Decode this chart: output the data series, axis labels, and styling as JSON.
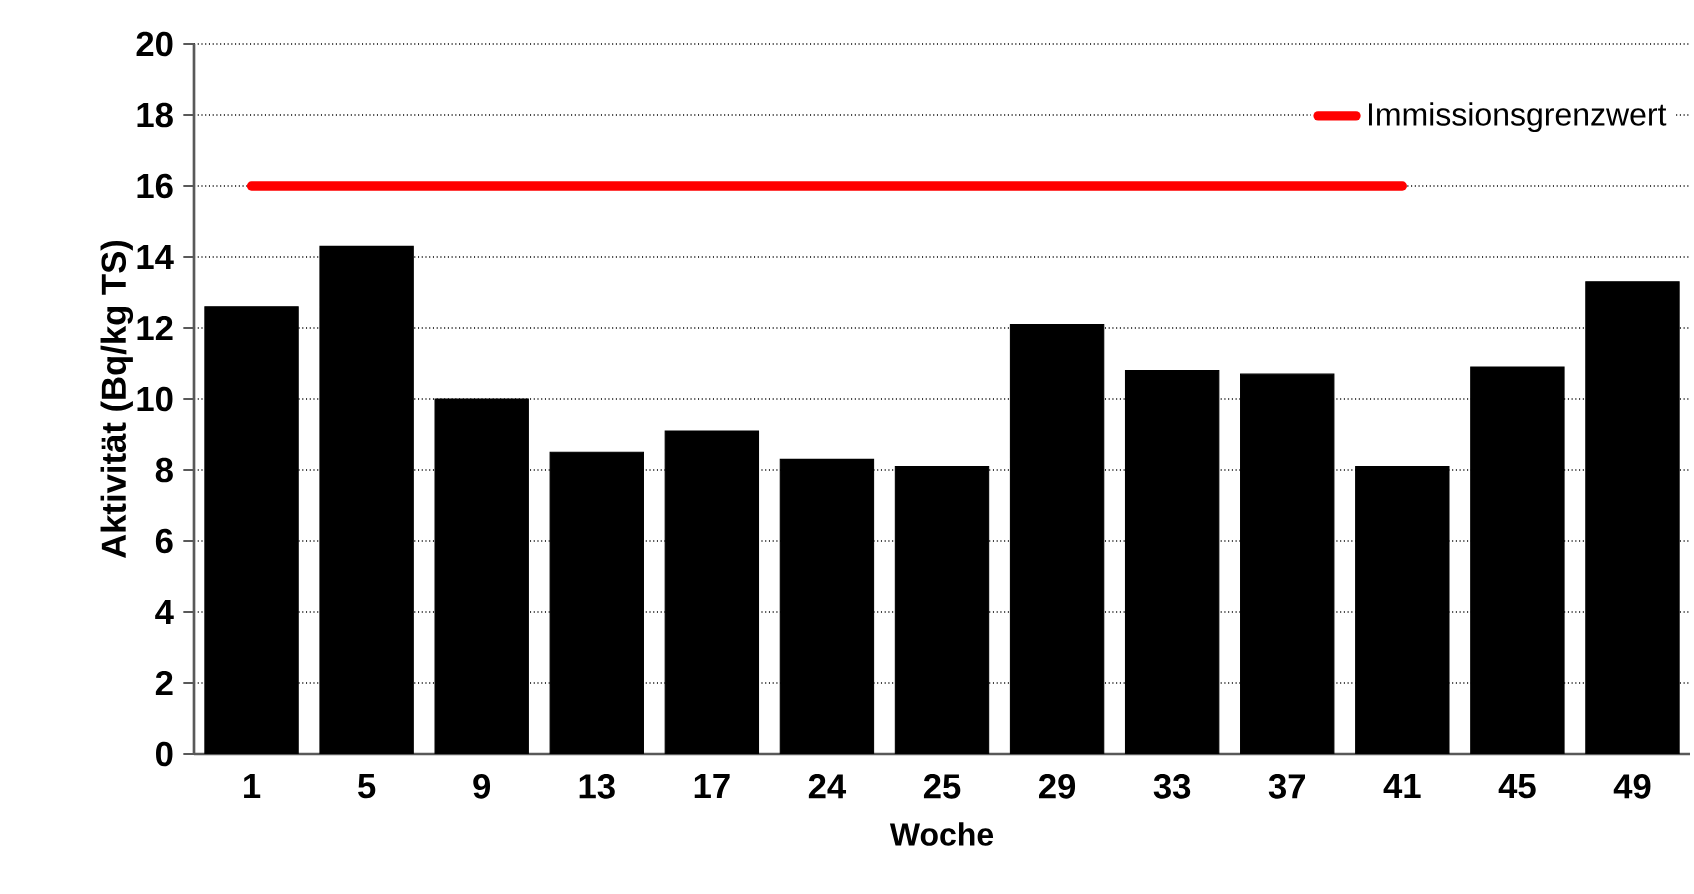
{
  "chart_data": {
    "type": "bar",
    "xlabel": "Woche",
    "ylabel": "Aktivität (Bq/kg TS)",
    "categories": [
      "1",
      "5",
      "9",
      "13",
      "17",
      "24",
      "25",
      "29",
      "33",
      "37",
      "41",
      "45",
      "49"
    ],
    "series": [
      {
        "color": "#000000",
        "values": [
          12.6,
          14.3,
          10.0,
          8.5,
          9.1,
          8.3,
          8.1,
          12.1,
          10.8,
          10.7,
          8.1,
          10.9,
          13.3
        ]
      },
      {
        "type": "line",
        "name": "Immissionsgrenzwert",
        "color": "#ff0000",
        "values": [
          16,
          16,
          16,
          16,
          16,
          16,
          16,
          16,
          16,
          16,
          16,
          null,
          null
        ]
      }
    ],
    "ylim": [
      0,
      20
    ],
    "yticks": [
      0,
      2,
      4,
      6,
      8,
      10,
      12,
      14,
      16,
      18,
      20
    ],
    "grid": "y",
    "legend": "top right"
  }
}
